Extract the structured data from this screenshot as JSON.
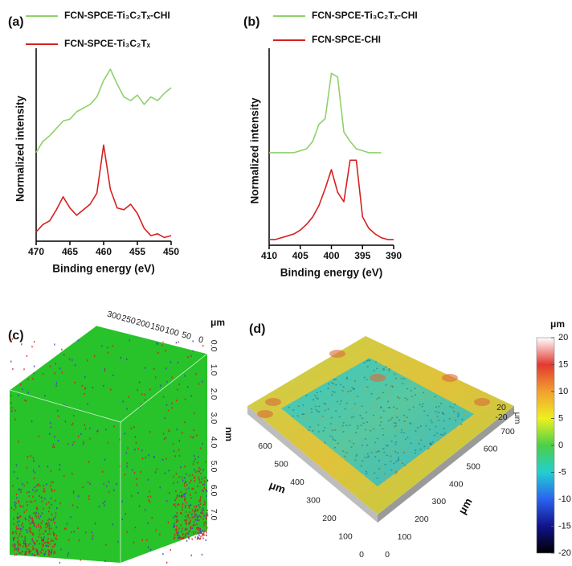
{
  "chart_data": [
    {
      "type": "line",
      "label": "(a)",
      "xlabel": "Binding energy (eV)",
      "ylabel": "Normalized intensity",
      "xlim": [
        470,
        450
      ],
      "xticks": [
        470,
        465,
        460,
        455,
        450
      ],
      "ylim": [
        0,
        100
      ],
      "series": [
        {
          "name": "FCN-SPCE-Ti₃C₂Tₓ-CHI",
          "color": "#8fd16a",
          "x": [
            470,
            469,
            468,
            467,
            466,
            465,
            464,
            463,
            462,
            461,
            460,
            459,
            458,
            457,
            456,
            455,
            454,
            453,
            452,
            451,
            450
          ],
          "values": [
            48,
            54,
            57,
            61,
            65,
            66,
            70,
            72,
            74,
            78,
            87,
            93,
            85,
            78,
            76,
            79,
            74,
            78,
            76,
            80,
            83
          ]
        },
        {
          "name": "FCN-SPCE-Ti₃C₂Tₓ",
          "color": "#d62020",
          "x": [
            470,
            469,
            468,
            467,
            466,
            465,
            464,
            463,
            462,
            461,
            460,
            459,
            458,
            457,
            456,
            455,
            454,
            453,
            452,
            451,
            450
          ],
          "values": [
            5,
            9,
            11,
            17,
            24,
            18,
            14,
            17,
            20,
            26,
            52,
            28,
            18,
            17,
            20,
            15,
            7,
            3,
            4,
            2,
            3
          ]
        }
      ]
    },
    {
      "type": "line",
      "label": "(b)",
      "xlabel": "Binding energy (eV)",
      "ylabel": "Normalized intensity",
      "xlim": [
        410,
        390
      ],
      "xticks": [
        410,
        405,
        400,
        395,
        390
      ],
      "ylim": [
        0,
        100
      ],
      "series": [
        {
          "name": "FCN-SPCE-Ti₃C₂Tₓ-CHI",
          "color": "#8fd16a",
          "x": [
            410,
            409,
            408,
            407,
            406,
            405,
            404,
            403,
            402,
            401,
            400,
            399,
            398,
            397,
            396,
            395,
            394,
            393,
            392
          ],
          "values": [
            49,
            49,
            49,
            49,
            49,
            50,
            51,
            55,
            64,
            67,
            91,
            89,
            60,
            55,
            51,
            50,
            49,
            49,
            49
          ]
        },
        {
          "name": "FCN-SPCE-CHI",
          "color": "#d62020",
          "x": [
            410,
            409,
            408,
            407,
            406,
            405,
            404,
            403,
            402,
            401,
            400,
            399,
            398,
            397,
            396,
            395,
            394,
            393,
            392,
            391,
            390
          ],
          "values": [
            3,
            3,
            4,
            5,
            6,
            8,
            11,
            15,
            21,
            30,
            40,
            28,
            23,
            45,
            45,
            15,
            9,
            6,
            4,
            3,
            3
          ]
        }
      ]
    },
    {
      "type": "volume3d",
      "label": "(c)",
      "x_unit": "μm",
      "xticks": [
        300,
        250,
        200,
        150,
        100,
        50,
        0
      ],
      "z_unit": "nm",
      "zticks": [
        {
          "value": 0,
          "label": "0.0"
        },
        {
          "value": 1,
          "label": "1.0"
        },
        {
          "value": 2,
          "label": "2.0"
        },
        {
          "value": 3,
          "label": "3.0"
        },
        {
          "value": 4,
          "label": "4.0"
        },
        {
          "value": 5,
          "label": "5.0"
        },
        {
          "value": 6,
          "label": "6.0"
        },
        {
          "value": 7,
          "label": "7.0"
        }
      ],
      "colors": [
        "#28c22a",
        "#e01818",
        "#3a3ad8"
      ]
    },
    {
      "type": "surface3d",
      "label": "(d)",
      "x_unit": "μm",
      "xticks": [
        600,
        500,
        400,
        300,
        200,
        100,
        0
      ],
      "y_unit": "μm",
      "yticks": [
        700,
        600,
        500,
        400,
        300,
        200,
        100,
        0
      ],
      "z_unit": "μm",
      "zticks": [
        20,
        -20
      ],
      "colorbar": {
        "label": "μm",
        "clim": [
          -20,
          20
        ],
        "ticks": [
          20,
          15,
          10,
          5,
          0,
          -5,
          -10,
          -15,
          -20
        ],
        "colormap": [
          "#ffffff",
          "#e23a30",
          "#f2a030",
          "#eef020",
          "#4ccf48",
          "#22cfd0",
          "#2a62ef",
          "#12128a",
          "#000000"
        ]
      }
    }
  ]
}
